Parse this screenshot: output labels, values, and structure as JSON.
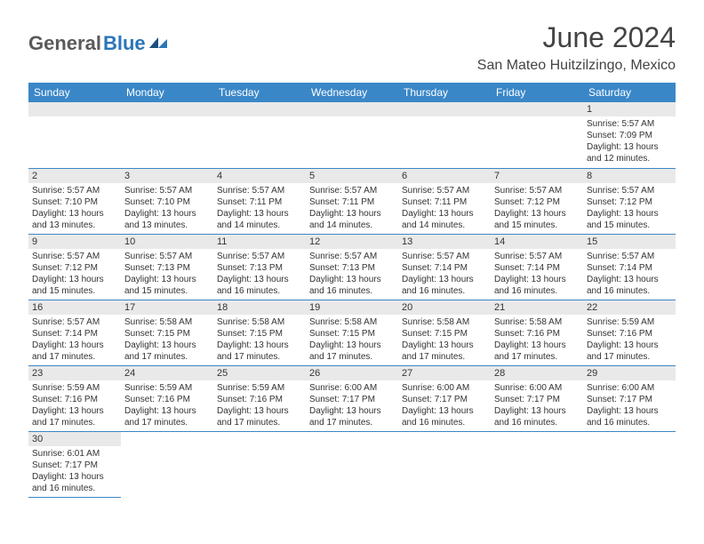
{
  "logo": {
    "text1": "General",
    "text2": "Blue"
  },
  "title": "June 2024",
  "location": "San Mateo Huitzilzingo, Mexico",
  "accent_color": "#3a87c8",
  "header_bg": "#e9e9e9",
  "daynames": [
    "Sunday",
    "Monday",
    "Tuesday",
    "Wednesday",
    "Thursday",
    "Friday",
    "Saturday"
  ],
  "weeks": [
    [
      null,
      null,
      null,
      null,
      null,
      null,
      {
        "n": "1",
        "sr": "Sunrise: 5:57 AM",
        "ss": "Sunset: 7:09 PM",
        "d1": "Daylight: 13 hours",
        "d2": "and 12 minutes."
      }
    ],
    [
      {
        "n": "2",
        "sr": "Sunrise: 5:57 AM",
        "ss": "Sunset: 7:10 PM",
        "d1": "Daylight: 13 hours",
        "d2": "and 13 minutes."
      },
      {
        "n": "3",
        "sr": "Sunrise: 5:57 AM",
        "ss": "Sunset: 7:10 PM",
        "d1": "Daylight: 13 hours",
        "d2": "and 13 minutes."
      },
      {
        "n": "4",
        "sr": "Sunrise: 5:57 AM",
        "ss": "Sunset: 7:11 PM",
        "d1": "Daylight: 13 hours",
        "d2": "and 14 minutes."
      },
      {
        "n": "5",
        "sr": "Sunrise: 5:57 AM",
        "ss": "Sunset: 7:11 PM",
        "d1": "Daylight: 13 hours",
        "d2": "and 14 minutes."
      },
      {
        "n": "6",
        "sr": "Sunrise: 5:57 AM",
        "ss": "Sunset: 7:11 PM",
        "d1": "Daylight: 13 hours",
        "d2": "and 14 minutes."
      },
      {
        "n": "7",
        "sr": "Sunrise: 5:57 AM",
        "ss": "Sunset: 7:12 PM",
        "d1": "Daylight: 13 hours",
        "d2": "and 15 minutes."
      },
      {
        "n": "8",
        "sr": "Sunrise: 5:57 AM",
        "ss": "Sunset: 7:12 PM",
        "d1": "Daylight: 13 hours",
        "d2": "and 15 minutes."
      }
    ],
    [
      {
        "n": "9",
        "sr": "Sunrise: 5:57 AM",
        "ss": "Sunset: 7:12 PM",
        "d1": "Daylight: 13 hours",
        "d2": "and 15 minutes."
      },
      {
        "n": "10",
        "sr": "Sunrise: 5:57 AM",
        "ss": "Sunset: 7:13 PM",
        "d1": "Daylight: 13 hours",
        "d2": "and 15 minutes."
      },
      {
        "n": "11",
        "sr": "Sunrise: 5:57 AM",
        "ss": "Sunset: 7:13 PM",
        "d1": "Daylight: 13 hours",
        "d2": "and 16 minutes."
      },
      {
        "n": "12",
        "sr": "Sunrise: 5:57 AM",
        "ss": "Sunset: 7:13 PM",
        "d1": "Daylight: 13 hours",
        "d2": "and 16 minutes."
      },
      {
        "n": "13",
        "sr": "Sunrise: 5:57 AM",
        "ss": "Sunset: 7:14 PM",
        "d1": "Daylight: 13 hours",
        "d2": "and 16 minutes."
      },
      {
        "n": "14",
        "sr": "Sunrise: 5:57 AM",
        "ss": "Sunset: 7:14 PM",
        "d1": "Daylight: 13 hours",
        "d2": "and 16 minutes."
      },
      {
        "n": "15",
        "sr": "Sunrise: 5:57 AM",
        "ss": "Sunset: 7:14 PM",
        "d1": "Daylight: 13 hours",
        "d2": "and 16 minutes."
      }
    ],
    [
      {
        "n": "16",
        "sr": "Sunrise: 5:57 AM",
        "ss": "Sunset: 7:14 PM",
        "d1": "Daylight: 13 hours",
        "d2": "and 17 minutes."
      },
      {
        "n": "17",
        "sr": "Sunrise: 5:58 AM",
        "ss": "Sunset: 7:15 PM",
        "d1": "Daylight: 13 hours",
        "d2": "and 17 minutes."
      },
      {
        "n": "18",
        "sr": "Sunrise: 5:58 AM",
        "ss": "Sunset: 7:15 PM",
        "d1": "Daylight: 13 hours",
        "d2": "and 17 minutes."
      },
      {
        "n": "19",
        "sr": "Sunrise: 5:58 AM",
        "ss": "Sunset: 7:15 PM",
        "d1": "Daylight: 13 hours",
        "d2": "and 17 minutes."
      },
      {
        "n": "20",
        "sr": "Sunrise: 5:58 AM",
        "ss": "Sunset: 7:15 PM",
        "d1": "Daylight: 13 hours",
        "d2": "and 17 minutes."
      },
      {
        "n": "21",
        "sr": "Sunrise: 5:58 AM",
        "ss": "Sunset: 7:16 PM",
        "d1": "Daylight: 13 hours",
        "d2": "and 17 minutes."
      },
      {
        "n": "22",
        "sr": "Sunrise: 5:59 AM",
        "ss": "Sunset: 7:16 PM",
        "d1": "Daylight: 13 hours",
        "d2": "and 17 minutes."
      }
    ],
    [
      {
        "n": "23",
        "sr": "Sunrise: 5:59 AM",
        "ss": "Sunset: 7:16 PM",
        "d1": "Daylight: 13 hours",
        "d2": "and 17 minutes."
      },
      {
        "n": "24",
        "sr": "Sunrise: 5:59 AM",
        "ss": "Sunset: 7:16 PM",
        "d1": "Daylight: 13 hours",
        "d2": "and 17 minutes."
      },
      {
        "n": "25",
        "sr": "Sunrise: 5:59 AM",
        "ss": "Sunset: 7:16 PM",
        "d1": "Daylight: 13 hours",
        "d2": "and 17 minutes."
      },
      {
        "n": "26",
        "sr": "Sunrise: 6:00 AM",
        "ss": "Sunset: 7:17 PM",
        "d1": "Daylight: 13 hours",
        "d2": "and 17 minutes."
      },
      {
        "n": "27",
        "sr": "Sunrise: 6:00 AM",
        "ss": "Sunset: 7:17 PM",
        "d1": "Daylight: 13 hours",
        "d2": "and 16 minutes."
      },
      {
        "n": "28",
        "sr": "Sunrise: 6:00 AM",
        "ss": "Sunset: 7:17 PM",
        "d1": "Daylight: 13 hours",
        "d2": "and 16 minutes."
      },
      {
        "n": "29",
        "sr": "Sunrise: 6:00 AM",
        "ss": "Sunset: 7:17 PM",
        "d1": "Daylight: 13 hours",
        "d2": "and 16 minutes."
      }
    ],
    [
      {
        "n": "30",
        "sr": "Sunrise: 6:01 AM",
        "ss": "Sunset: 7:17 PM",
        "d1": "Daylight: 13 hours",
        "d2": "and 16 minutes."
      },
      null,
      null,
      null,
      null,
      null,
      null
    ]
  ]
}
